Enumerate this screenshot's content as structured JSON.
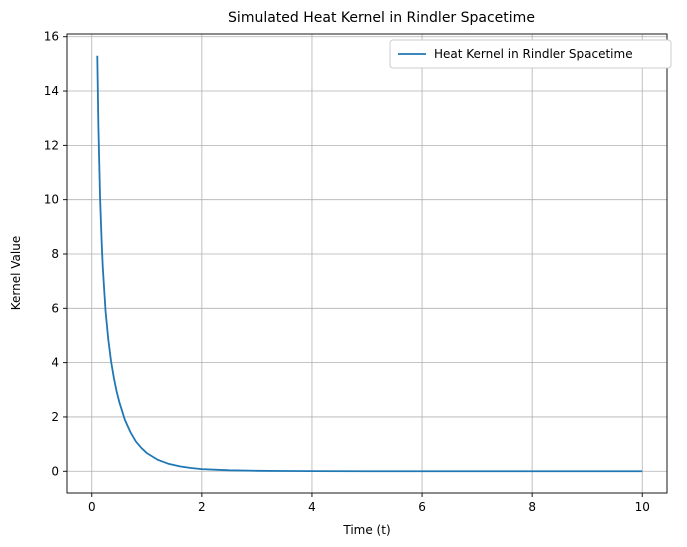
{
  "chart_data": {
    "type": "line",
    "title": "Simulated Heat Kernel in Rindler Spacetime",
    "xlabel": "Time (t)",
    "ylabel": "Kernel Value",
    "xlim": [
      -0.45,
      10.45
    ],
    "ylim": [
      -0.8,
      16.1
    ],
    "xticks": [
      0,
      2,
      4,
      6,
      8,
      10
    ],
    "yticks": [
      0,
      2,
      4,
      6,
      8,
      10,
      12,
      14,
      16
    ],
    "grid": true,
    "legend_position": "top-right",
    "series": [
      {
        "name": "Heat Kernel in Rindler Spacetime",
        "color": "#1f77b4",
        "x": [
          0.1,
          0.12,
          0.15,
          0.18,
          0.2,
          0.25,
          0.3,
          0.35,
          0.4,
          0.45,
          0.5,
          0.6,
          0.7,
          0.8,
          0.9,
          1.0,
          1.2,
          1.4,
          1.6,
          1.8,
          2.0,
          2.5,
          3.0,
          3.5,
          4.0,
          5.0,
          6.0,
          7.0,
          8.0,
          9.0,
          10.0
        ],
        "values": [
          15.3,
          12.7,
          10.1,
          8.4,
          7.5,
          5.9,
          4.85,
          4.05,
          3.45,
          2.95,
          2.55,
          1.9,
          1.45,
          1.1,
          0.86,
          0.67,
          0.42,
          0.27,
          0.18,
          0.12,
          0.08,
          0.035,
          0.017,
          0.009,
          0.005,
          0.002,
          0.001,
          0.0005,
          0.0002,
          0.0001,
          0.0
        ]
      }
    ]
  }
}
